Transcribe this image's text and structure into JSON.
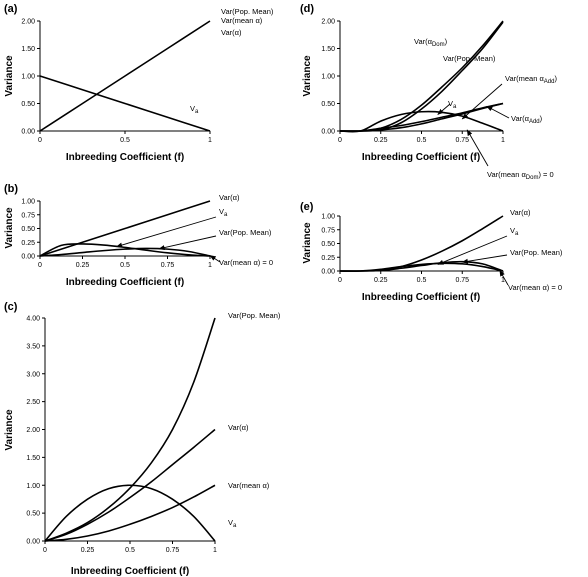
{
  "chart_data": [
    {
      "id": "a",
      "type": "line",
      "panel_label": "(a)",
      "xlabel": "Inbreeding Coefficient (f)",
      "ylabel": "Variance",
      "xlim": [
        0,
        1
      ],
      "ylim": [
        0,
        2
      ],
      "xticks": [
        0,
        0.5,
        1
      ],
      "xtick_labels": [
        "0",
        "0.5",
        "1"
      ],
      "yticks": [
        0,
        0.5,
        1,
        1.5,
        2
      ],
      "ytick_labels": [
        "0.00",
        "0.50",
        "1.00",
        "1.50",
        "2.00"
      ],
      "grid": false,
      "series": [
        {
          "id": "a_rising",
          "x": [
            0,
            0.25,
            0.5,
            0.75,
            1
          ],
          "y": [
            0,
            0.5,
            1,
            1.5,
            2
          ]
        },
        {
          "id": "a_va",
          "x": [
            0,
            0.25,
            0.5,
            0.75,
            1
          ],
          "y": [
            1,
            0.75,
            0.5,
            0.25,
            0
          ]
        }
      ],
      "annotations": [
        {
          "id": "a_ann_popmean",
          "text": "Var(Pop. Mean)",
          "target": null
        },
        {
          "id": "a_ann_meanalpha",
          "text": "Var(mean α)",
          "target": null
        },
        {
          "id": "a_ann_alpha",
          "text": "Var(α)",
          "target": null
        },
        {
          "id": "a_ann_va",
          "text": "V",
          "sub": "a",
          "target": null
        }
      ]
    },
    {
      "id": "b",
      "type": "line",
      "panel_label": "(b)",
      "xlabel": "Inbreeding Coefficient (f)",
      "ylabel": "Variance",
      "xlim": [
        0,
        1
      ],
      "ylim": [
        0,
        1
      ],
      "xticks": [
        0,
        0.25,
        0.5,
        0.75,
        1
      ],
      "xtick_labels": [
        "0",
        "0.25",
        "0.5",
        "0.75",
        "1"
      ],
      "yticks": [
        0,
        0.25,
        0.5,
        0.75,
        1
      ],
      "ytick_labels": [
        "0.00",
        "0.25",
        "0.50",
        "0.75",
        "1.00"
      ],
      "grid": false,
      "series": [
        {
          "id": "b_alpha",
          "x": [
            0,
            0.25,
            0.5,
            0.75,
            1
          ],
          "y": [
            0,
            0.25,
            0.5,
            0.75,
            1
          ]
        },
        {
          "id": "b_va",
          "x": [
            0,
            0.125,
            0.25,
            0.375,
            0.5,
            0.625,
            0.75,
            0.875,
            1
          ],
          "y": [
            0,
            0.193,
            0.219,
            0.199,
            0.156,
            0.105,
            0.058,
            0.022,
            0
          ]
        },
        {
          "id": "b_popmean",
          "x": [
            0,
            0.125,
            0.25,
            0.375,
            0.5,
            0.625,
            0.75,
            0.875,
            1
          ],
          "y": [
            0,
            0.027,
            0.063,
            0.098,
            0.125,
            0.137,
            0.125,
            0.082,
            0
          ]
        }
      ],
      "annotations": [
        {
          "id": "b_ann_alpha",
          "text": "Var(α)",
          "target": null
        },
        {
          "id": "b_ann_va",
          "text": "V",
          "sub": "a",
          "target": [
            0.45,
            0.17
          ]
        },
        {
          "id": "b_ann_popmean",
          "text": "Var(Pop. Mean)",
          "target": [
            0.7,
            0.13
          ]
        },
        {
          "id": "b_ann_meanzero",
          "text": "Var(mean α) = 0",
          "target": [
            1.0,
            0.01
          ]
        }
      ]
    },
    {
      "id": "c",
      "type": "line",
      "panel_label": "(c)",
      "xlabel": "Inbreeding Coefficient (f)",
      "ylabel": "Variance",
      "xlim": [
        0,
        1
      ],
      "ylim": [
        0,
        4
      ],
      "xticks": [
        0,
        0.25,
        0.5,
        0.75,
        1
      ],
      "xtick_labels": [
        "0",
        "0.25",
        "0.5",
        "0.75",
        "1"
      ],
      "yticks": [
        0,
        0.5,
        1,
        1.5,
        2,
        2.5,
        3,
        3.5,
        4
      ],
      "ytick_labels": [
        "0.00",
        "0.50",
        "1.00",
        "1.50",
        "2.00",
        "2.50",
        "3.00",
        "3.50",
        "4.00"
      ],
      "grid": false,
      "series": [
        {
          "id": "c_popmean",
          "x": [
            0,
            0.125,
            0.25,
            0.375,
            0.5,
            0.625,
            0.75,
            0.875,
            1
          ],
          "y": [
            0,
            0.14,
            0.33,
            0.6,
            0.95,
            1.4,
            2.0,
            2.85,
            4.0
          ]
        },
        {
          "id": "c_alpha",
          "x": [
            0,
            0.125,
            0.25,
            0.375,
            0.5,
            0.625,
            0.75,
            0.875,
            1
          ],
          "y": [
            0,
            0.12,
            0.3,
            0.52,
            0.78,
            1.06,
            1.37,
            1.68,
            2.0
          ]
        },
        {
          "id": "c_meanalpha",
          "x": [
            0,
            0.125,
            0.25,
            0.375,
            0.5,
            0.625,
            0.75,
            0.875,
            1
          ],
          "y": [
            0,
            0.03,
            0.09,
            0.18,
            0.3,
            0.44,
            0.6,
            0.79,
            1.0
          ]
        },
        {
          "id": "c_va",
          "x": [
            0,
            0.125,
            0.25,
            0.375,
            0.5,
            0.625,
            0.75,
            0.875,
            1
          ],
          "y": [
            0,
            0.44,
            0.75,
            0.94,
            1.0,
            0.94,
            0.75,
            0.44,
            0
          ]
        }
      ],
      "annotations": [
        {
          "id": "c_ann_popmean",
          "text": "Var(Pop. Mean)",
          "target": null
        },
        {
          "id": "c_ann_alpha",
          "text": "Var(α)",
          "target": null
        },
        {
          "id": "c_ann_meanalpha",
          "text": "Var(mean α)",
          "target": null
        },
        {
          "id": "c_ann_va",
          "text": "V",
          "sub": "a",
          "target": null
        }
      ]
    },
    {
      "id": "d",
      "type": "line",
      "panel_label": "(d)",
      "xlabel": "Inbreeding Coefficient (f)",
      "ylabel": "Variance",
      "xlim": [
        0,
        1
      ],
      "ylim": [
        0,
        2
      ],
      "xticks": [
        0,
        0.25,
        0.5,
        0.75,
        1
      ],
      "xtick_labels": [
        "0",
        "0.25",
        "0.5",
        "0.75",
        "1"
      ],
      "yticks": [
        0,
        0.5,
        1,
        1.5,
        2
      ],
      "ytick_labels": [
        "0.00",
        "0.50",
        "1.00",
        "1.50",
        "2.00"
      ],
      "grid": false,
      "series": [
        {
          "id": "d_alphadom",
          "x": [
            0,
            0.125,
            0.25,
            0.375,
            0.5,
            0.625,
            0.75,
            0.875,
            1
          ],
          "y": [
            0,
            0,
            0.05,
            0.21,
            0.47,
            0.8,
            1.15,
            1.55,
            2.0
          ]
        },
        {
          "id": "d_popmean",
          "x": [
            0,
            0.125,
            0.25,
            0.375,
            0.5,
            0.625,
            0.75,
            0.875,
            1
          ],
          "y": [
            0,
            0,
            0.02,
            0.15,
            0.4,
            0.72,
            1.1,
            1.5,
            1.98
          ]
        },
        {
          "id": "d_meanadd",
          "x": [
            0,
            0.125,
            0.25,
            0.375,
            0.5,
            0.625,
            0.75,
            0.875,
            1
          ],
          "y": [
            0,
            0,
            0.02,
            0.06,
            0.13,
            0.22,
            0.31,
            0.41,
            0.5
          ]
        },
        {
          "id": "d_alphaadd",
          "x": [
            0,
            0.125,
            0.25,
            0.375,
            0.5,
            0.625,
            0.75,
            0.875,
            1
          ],
          "y": [
            0,
            0,
            0.05,
            0.1,
            0.17,
            0.25,
            0.33,
            0.42,
            0.5
          ]
        },
        {
          "id": "d_va",
          "x": [
            0,
            0.125,
            0.25,
            0.375,
            0.5,
            0.625,
            0.75,
            0.875,
            1
          ],
          "y": [
            0,
            0,
            0.18,
            0.3,
            0.35,
            0.34,
            0.27,
            0.14,
            0
          ]
        }
      ],
      "annotations": [
        {
          "id": "d_ann_alphadom",
          "text": "Var(α",
          "sub": "Dom",
          "suffix": ")",
          "target": null
        },
        {
          "id": "d_ann_popmean",
          "text": "Var(Pop. Mean)",
          "target": null
        },
        {
          "id": "d_ann_meanadd",
          "text": "Var(mean α",
          "sub": "Add",
          "suffix": ")",
          "target": [
            0.75,
            0.22
          ]
        },
        {
          "id": "d_ann_va",
          "text": "V",
          "sub": "a",
          "target": [
            0.6,
            0.3
          ]
        },
        {
          "id": "d_ann_alphaadd",
          "text": "Var(α",
          "sub": "Add",
          "suffix": ")",
          "target": [
            0.9,
            0.45
          ]
        },
        {
          "id": "d_ann_meandom",
          "text": "Var(mean α",
          "sub": "Dom",
          "suffix": ") = 0",
          "target": [
            0.78,
            0.02
          ]
        }
      ]
    },
    {
      "id": "e",
      "type": "line",
      "panel_label": "(e)",
      "xlabel": "Inbreeding Coefficient (f)",
      "ylabel": "Variance",
      "xlim": [
        0,
        1
      ],
      "ylim": [
        0,
        1
      ],
      "xticks": [
        0,
        0.25,
        0.5,
        0.75,
        1
      ],
      "xtick_labels": [
        "0",
        "0.25",
        "0.5",
        "0.75",
        "1"
      ],
      "yticks": [
        0,
        0.25,
        0.5,
        0.75,
        1
      ],
      "ytick_labels": [
        "0.00",
        "0.25",
        "0.50",
        "0.75",
        "1.00"
      ],
      "grid": false,
      "series": [
        {
          "id": "e_alpha",
          "x": [
            0,
            0.125,
            0.25,
            0.375,
            0.5,
            0.625,
            0.75,
            0.875,
            1
          ],
          "y": [
            0,
            0,
            0.02,
            0.08,
            0.2,
            0.36,
            0.55,
            0.77,
            1.0
          ]
        },
        {
          "id": "e_va",
          "x": [
            0,
            0.125,
            0.25,
            0.375,
            0.5,
            0.625,
            0.75,
            0.875,
            1
          ],
          "y": [
            0,
            0,
            0.03,
            0.08,
            0.12,
            0.14,
            0.13,
            0.08,
            0
          ]
        },
        {
          "id": "e_popmean",
          "x": [
            0,
            0.125,
            0.25,
            0.375,
            0.5,
            0.625,
            0.75,
            0.875,
            1
          ],
          "y": [
            0,
            0,
            0.01,
            0.05,
            0.1,
            0.15,
            0.17,
            0.13,
            0
          ]
        }
      ],
      "annotations": [
        {
          "id": "e_ann_alpha",
          "text": "Var(α)",
          "target": null
        },
        {
          "id": "e_ann_va",
          "text": "V",
          "sub": "a",
          "target": [
            0.6,
            0.12
          ]
        },
        {
          "id": "e_ann_popmean",
          "text": "Var(Pop. Mean)",
          "target": [
            0.75,
            0.16
          ]
        },
        {
          "id": "e_ann_meanzero",
          "text": "Var(mean α) = 0",
          "target": [
            0.98,
            0.01
          ]
        }
      ]
    }
  ]
}
